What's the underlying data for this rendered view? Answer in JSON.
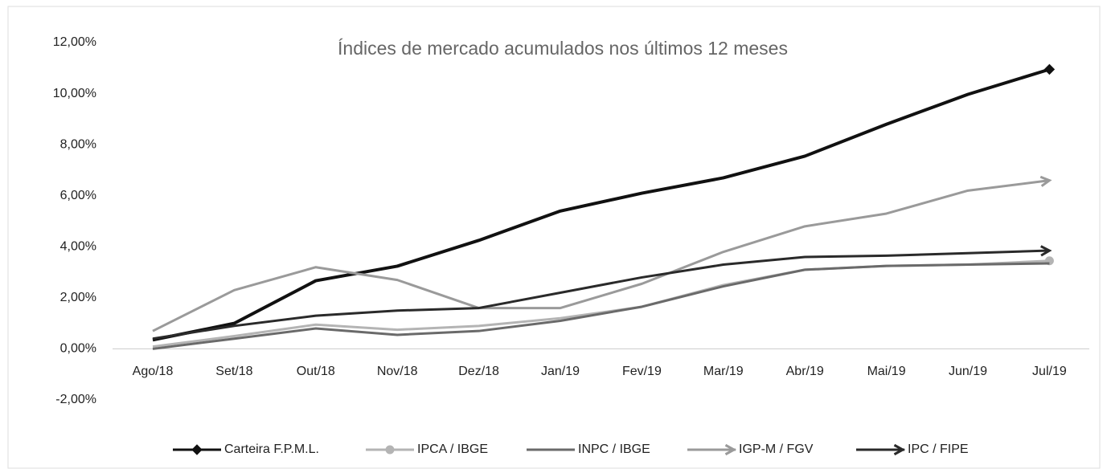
{
  "chart_data": {
    "type": "line",
    "title": "Índices de mercado acumulados nos últimos 12 meses",
    "categories": [
      "Ago/18",
      "Set/18",
      "Out/18",
      "Nov/18",
      "Dez/18",
      "Jan/19",
      "Fev/19",
      "Mar/19",
      "Abr/19",
      "Mai/19",
      "Jun/19",
      "Jul/19"
    ],
    "series": [
      {
        "name": "Carteira F.P.M.L.",
        "color": "#111111",
        "marker": "diamond",
        "values": [
          0.35,
          1.0,
          2.67,
          3.24,
          4.25,
          5.4,
          6.1,
          6.7,
          7.55,
          8.8,
          9.97,
          10.95
        ]
      },
      {
        "name": "IPCA / IBGE",
        "color": "#b4b4b4",
        "marker": "circle",
        "values": [
          0.09,
          0.5,
          0.95,
          0.75,
          0.9,
          1.2,
          1.65,
          2.5,
          3.1,
          3.25,
          3.3,
          3.45
        ]
      },
      {
        "name": "INPC / IBGE",
        "color": "#6a6a6a",
        "marker": "none",
        "values": [
          0.0,
          0.4,
          0.8,
          0.55,
          0.7,
          1.1,
          1.65,
          2.45,
          3.1,
          3.25,
          3.3,
          3.35
        ]
      },
      {
        "name": "IGP-M / FGV",
        "color": "#9a9a9a",
        "marker": "arrow",
        "values": [
          0.7,
          2.3,
          3.2,
          2.7,
          1.6,
          1.6,
          2.55,
          3.8,
          4.8,
          5.3,
          6.2,
          6.6
        ]
      },
      {
        "name": "IPC / FIPE",
        "color": "#2a2a2a",
        "marker": "arrow",
        "values": [
          0.4,
          0.9,
          1.3,
          1.5,
          1.6,
          2.2,
          2.8,
          3.3,
          3.6,
          3.65,
          3.75,
          3.85
        ]
      }
    ],
    "ylim": [
      -2,
      12
    ],
    "yticks": [
      {
        "value": -2,
        "label": "-2,00%"
      },
      {
        "value": 0,
        "label": "0,00%"
      },
      {
        "value": 2,
        "label": "2,00%"
      },
      {
        "value": 4,
        "label": "4,00%"
      },
      {
        "value": 6,
        "label": "6,00%"
      },
      {
        "value": 8,
        "label": "8,00%"
      },
      {
        "value": 10,
        "label": "10,00%"
      },
      {
        "value": 12,
        "label": "12,00%"
      }
    ],
    "grid": false,
    "legend": "bottom"
  }
}
